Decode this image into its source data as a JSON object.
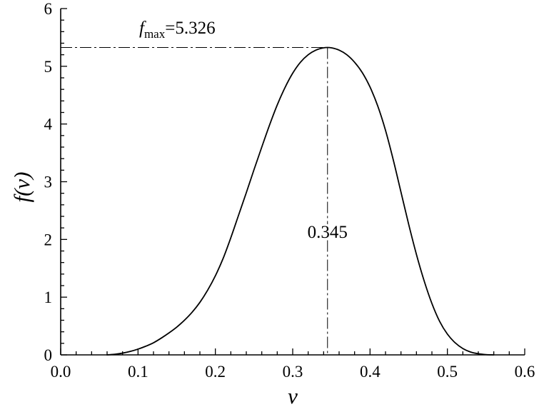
{
  "chart_data": {
    "type": "line",
    "xlabel": "v",
    "ylabel": "f(v)",
    "xlim": [
      0.0,
      0.6
    ],
    "ylim": [
      0,
      6
    ],
    "x_ticks": [
      0.0,
      0.1,
      0.2,
      0.3,
      0.4,
      0.5,
      0.6
    ],
    "x_tick_labels": [
      "0.0",
      "0.1",
      "0.2",
      "0.3",
      "0.4",
      "0.5",
      "0.6"
    ],
    "x_minor_step": 0.02,
    "y_ticks": [
      0,
      1,
      2,
      3,
      4,
      5,
      6
    ],
    "y_tick_labels": [
      "0",
      "1",
      "2",
      "3",
      "4",
      "5",
      "6"
    ],
    "y_minor_step": 0.2,
    "grid": false,
    "legend": "none",
    "series": [
      {
        "x": [
          0.06,
          0.07,
          0.08,
          0.09,
          0.1,
          0.11,
          0.12,
          0.13,
          0.14,
          0.15,
          0.16,
          0.17,
          0.18,
          0.19,
          0.2,
          0.21,
          0.22,
          0.23,
          0.24,
          0.25,
          0.26,
          0.27,
          0.28,
          0.29,
          0.3,
          0.31,
          0.32,
          0.33,
          0.34,
          0.345,
          0.35,
          0.36,
          0.37,
          0.38,
          0.39,
          0.4,
          0.41,
          0.42,
          0.43,
          0.44,
          0.45,
          0.46,
          0.47,
          0.48,
          0.49,
          0.5,
          0.51,
          0.52,
          0.53,
          0.54,
          0.55,
          0.56
        ],
        "y": [
          0,
          0.01,
          0.03,
          0.06,
          0.1,
          0.15,
          0.21,
          0.29,
          0.38,
          0.48,
          0.6,
          0.74,
          0.91,
          1.12,
          1.37,
          1.67,
          2.03,
          2.42,
          2.81,
          3.21,
          3.6,
          3.98,
          4.33,
          4.63,
          4.88,
          5.07,
          5.2,
          5.28,
          5.32,
          5.326,
          5.32,
          5.28,
          5.2,
          5.07,
          4.89,
          4.64,
          4.31,
          3.89,
          3.38,
          2.82,
          2.26,
          1.74,
          1.28,
          0.89,
          0.58,
          0.36,
          0.21,
          0.11,
          0.05,
          0.02,
          0.005,
          0
        ]
      }
    ],
    "reference_lines": [
      {
        "orientation": "horizontal",
        "style": "dash-dot",
        "y": 5.326,
        "x_from": 0.0,
        "x_to": 0.345
      },
      {
        "orientation": "vertical",
        "style": "dash-dot",
        "x": 0.345,
        "y_from": 0,
        "y_to": 5.326
      }
    ],
    "annotations": {
      "fmax": {
        "symbol": "f",
        "subscript": "max",
        "value": "=5.326"
      },
      "peak_position": "0.345"
    },
    "colors": {
      "line": "#000000",
      "background": "#ffffff"
    }
  }
}
